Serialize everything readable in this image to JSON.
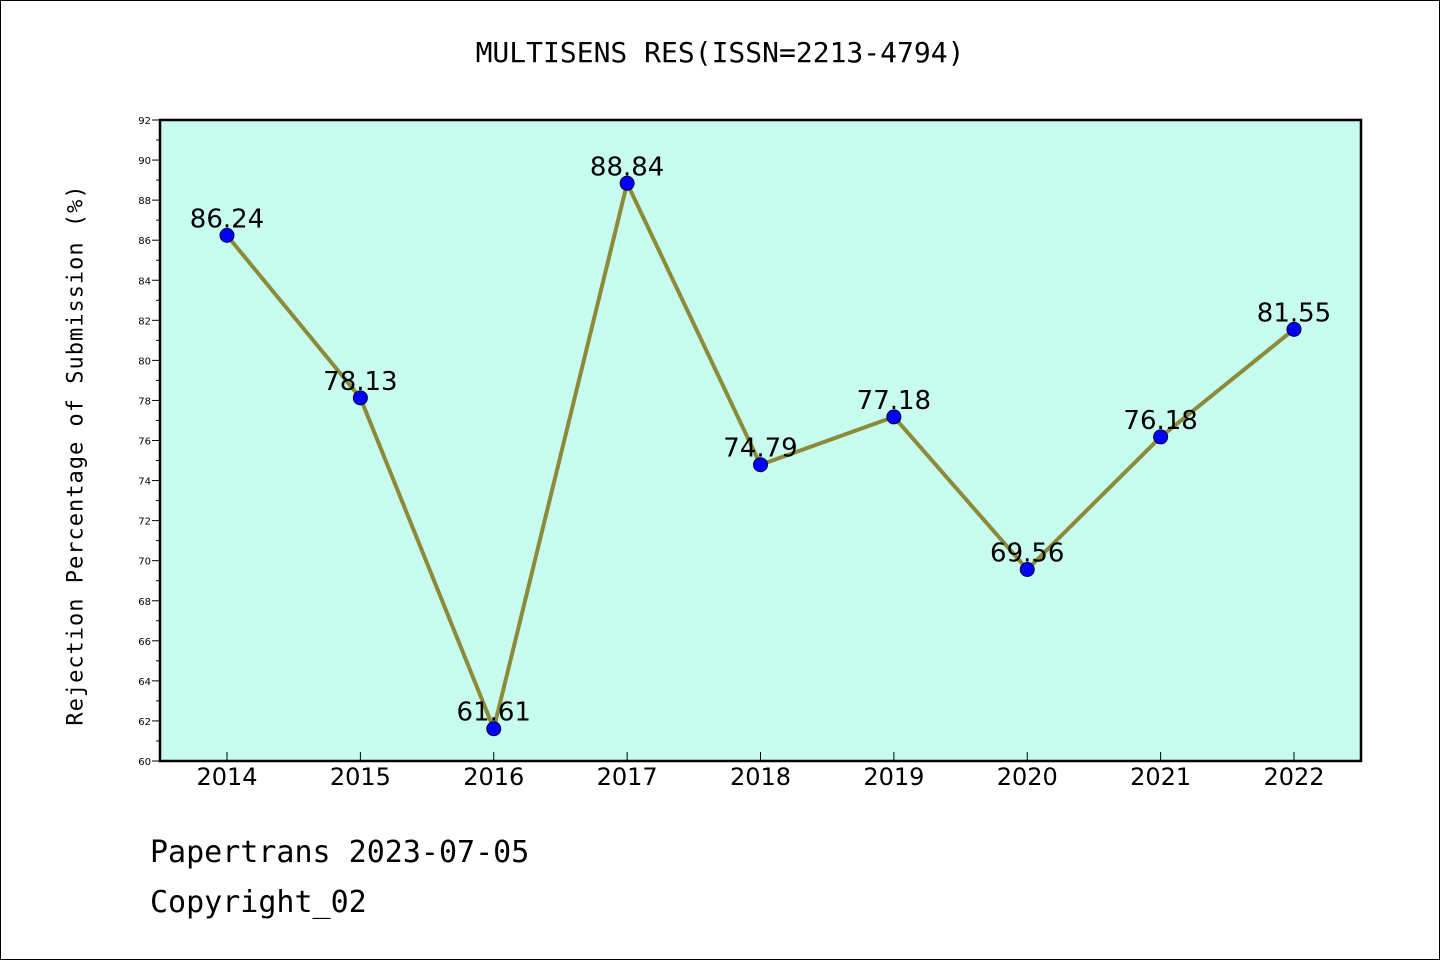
{
  "chart_data": {
    "type": "line",
    "title": "MULTISENS RES(ISSN=2213-4794)",
    "ylabel": "Rejection Percentage of Submission (%)",
    "xlabel": "",
    "categories": [
      "2014",
      "2015",
      "2016",
      "2017",
      "2018",
      "2019",
      "2020",
      "2021",
      "2022"
    ],
    "series": [
      {
        "values": [
          86.24,
          78.13,
          61.61,
          88.84,
          74.79,
          77.18,
          69.56,
          76.18,
          81.55
        ],
        "labels": [
          "86.24",
          "78.13",
          "61.61",
          "88.84",
          "74.79",
          "77.18",
          "69.56",
          "76.18",
          "81.55"
        ]
      }
    ],
    "ylim": [
      60,
      92
    ],
    "y_ticks": [
      "60",
      "62",
      "64",
      "66",
      "68",
      "70",
      "72",
      "74",
      "76",
      "78",
      "80",
      "82",
      "84",
      "86",
      "88",
      "90",
      "92"
    ],
    "grid": false,
    "colors": {
      "plot_background": "#c8fcee",
      "line": "#8b8b3a",
      "marker": "#0000ff"
    }
  },
  "footer": {
    "line1": "Papertrans 2023-07-05",
    "line2": "Copyright_02"
  }
}
